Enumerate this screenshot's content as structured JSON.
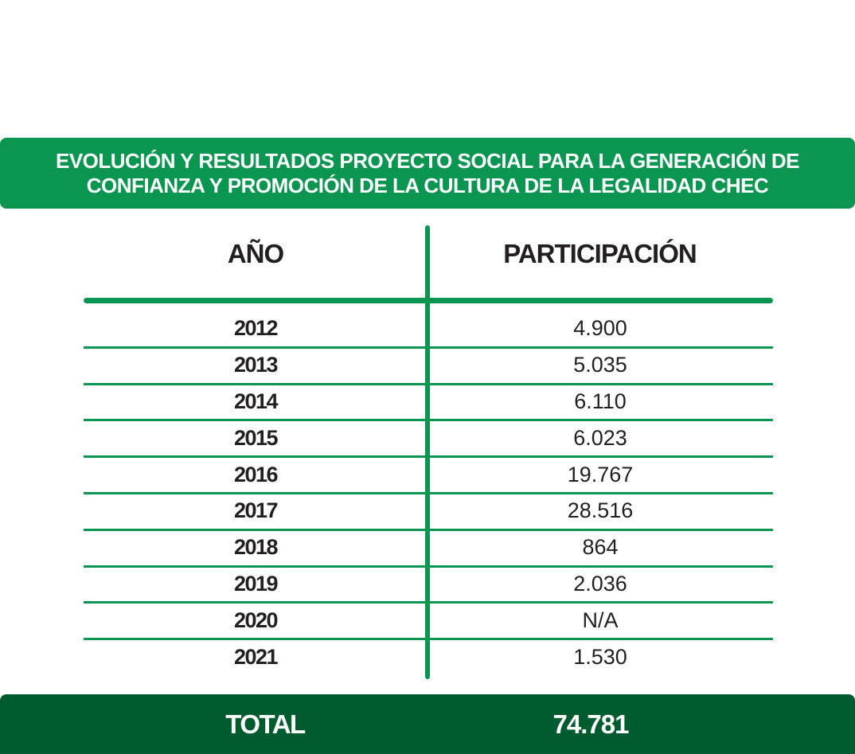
{
  "colors": {
    "title_bg": "#0a9650",
    "rule": "#0a9650",
    "total_bg": "#005c2e",
    "text": "#231f20",
    "text_inverse": "#ffffff"
  },
  "chart_data": {
    "type": "table",
    "title": "EVOLUCIÓN Y RESULTADOS PROYECTO SOCIAL PARA LA GENERACIÓN DE CONFIANZA Y PROMOCIÓN DE LA CULTURA DE LA LEGALIDAD CHEC",
    "columns": [
      "AÑO",
      "PARTICIPACIÓN"
    ],
    "rows": [
      {
        "year": "2012",
        "value": "4.900"
      },
      {
        "year": "2013",
        "value": "5.035"
      },
      {
        "year": "2014",
        "value": "6.110"
      },
      {
        "year": "2015",
        "value": "6.023"
      },
      {
        "year": "2016",
        "value": "19.767"
      },
      {
        "year": "2017",
        "value": "28.516"
      },
      {
        "year": "2018",
        "value": "864"
      },
      {
        "year": "2019",
        "value": "2.036"
      },
      {
        "year": "2020",
        "value": "N/A"
      },
      {
        "year": "2021",
        "value": "1.530"
      }
    ],
    "total": {
      "label": "TOTAL",
      "value": "74.781"
    }
  }
}
